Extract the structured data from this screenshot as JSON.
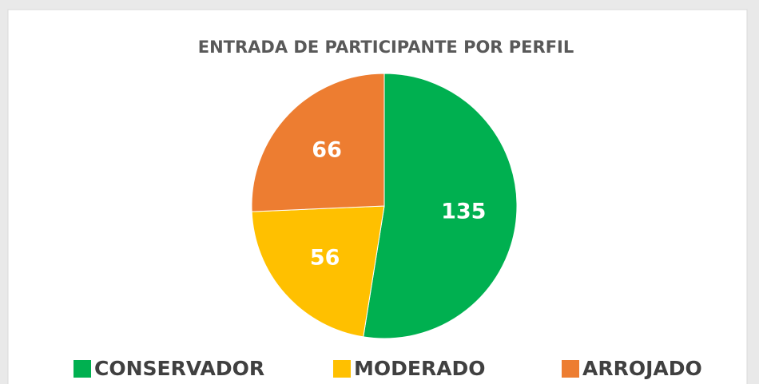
{
  "chart_data": {
    "type": "pie",
    "title": "ENTRADA DE PARTICIPANTE POR PERFIL",
    "categories": [
      "CONSERVADOR",
      "MODERADO",
      "ARROJADO"
    ],
    "values": [
      135,
      56,
      66
    ],
    "colors": [
      "#00b050",
      "#ffc000",
      "#ed7d31"
    ],
    "legend": "bottom"
  }
}
